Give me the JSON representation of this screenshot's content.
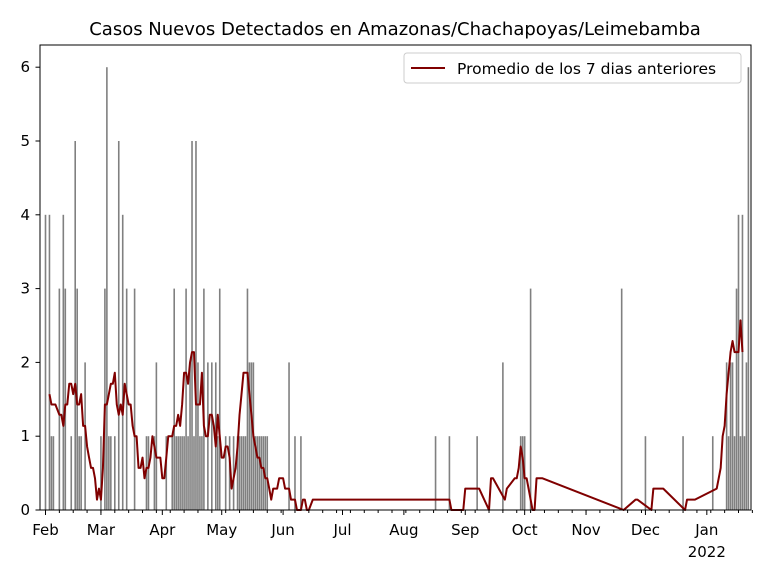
{
  "chart_data": {
    "type": "bar",
    "title": "Casos Nuevos Detectados en Amazonas/Chachapoyas/Leimebamba",
    "xlabel": "",
    "ylabel": "",
    "ylim": [
      0,
      6.3
    ],
    "yticks": [
      "0",
      "1",
      "2",
      "3",
      "4",
      "5",
      "6"
    ],
    "xticks": [
      {
        "label": "Feb",
        "day": 0
      },
      {
        "label": "Mar",
        "day": 28
      },
      {
        "label": "Apr",
        "day": 59
      },
      {
        "label": "May",
        "day": 89
      },
      {
        "label": "Jun",
        "day": 120
      },
      {
        "label": "Jul",
        "day": 150
      },
      {
        "label": "Aug",
        "day": 181
      },
      {
        "label": "Sep",
        "day": 212
      },
      {
        "label": "Oct",
        "day": 242
      },
      {
        "label": "Nov",
        "day": 273
      },
      {
        "label": "Dec",
        "day": 303
      },
      {
        "label": "Jan",
        "day": 334,
        "sublabel": "2022"
      }
    ],
    "grid": false,
    "legend": {
      "position": "top-right",
      "entries": [
        {
          "label": "Promedio de los 7 dias anteriores",
          "color": "#800000"
        }
      ]
    },
    "bar_color": "#808080",
    "line_color": "#800000",
    "date_start": "2021-02-01",
    "bars": {
      "day": [
        0,
        2,
        3,
        4,
        7,
        9,
        10,
        13,
        15,
        16,
        17,
        18,
        20,
        28,
        30,
        31,
        32,
        33,
        35,
        37,
        39,
        41,
        45,
        51,
        52,
        55,
        56,
        61,
        64,
        65,
        66,
        67,
        68,
        69,
        70,
        71,
        72,
        73,
        74,
        75,
        76,
        77,
        78,
        79,
        80,
        82,
        84,
        86,
        87,
        88,
        91,
        93,
        95,
        97,
        98,
        99,
        100,
        101,
        102,
        103,
        104,
        105,
        106,
        107,
        108,
        109,
        110,
        111,
        112,
        123,
        126,
        129,
        197,
        204,
        218,
        231,
        240,
        241,
        242,
        245,
        291,
        303,
        322,
        337,
        344,
        345,
        346,
        347,
        348,
        349,
        350,
        351,
        352,
        353,
        354,
        355
      ],
      "values": [
        4,
        4,
        1,
        1,
        3,
        4,
        3,
        1,
        5,
        3,
        1,
        1,
        2,
        1,
        3,
        6,
        1,
        1,
        1,
        5,
        4,
        3,
        3,
        1,
        1,
        1,
        2,
        1,
        1,
        3,
        1,
        1,
        1,
        1,
        1,
        3,
        1,
        2,
        5,
        1,
        5,
        2,
        1,
        1,
        3,
        2,
        2,
        2,
        1,
        3,
        1,
        1,
        1,
        1,
        1,
        1,
        1,
        1,
        3,
        2,
        2,
        2,
        1,
        1,
        1,
        1,
        1,
        1,
        1,
        2,
        1,
        1,
        1,
        1,
        1,
        2,
        1,
        1,
        1,
        3,
        3,
        1,
        1,
        1,
        2,
        1,
        2,
        2,
        1,
        3,
        4,
        1,
        4,
        1,
        2,
        6
      ]
    },
    "rolling_mean": {
      "day": [
        2,
        3,
        5,
        7,
        8,
        9,
        10,
        11,
        12,
        13,
        14,
        15,
        16,
        17,
        18,
        19,
        20,
        21,
        22,
        23,
        24,
        25,
        26,
        27,
        28,
        29,
        30,
        31,
        32,
        33,
        34,
        35,
        36,
        37,
        38,
        39,
        40,
        41,
        42,
        43,
        44,
        45,
        46,
        47,
        48,
        49,
        50,
        51,
        52,
        53,
        54,
        55,
        56,
        57,
        58,
        59,
        60,
        61,
        62,
        63,
        64,
        65,
        66,
        67,
        68,
        69,
        70,
        71,
        72,
        73,
        74,
        75,
        76,
        77,
        78,
        79,
        80,
        81,
        82,
        83,
        84,
        85,
        86,
        87,
        88,
        89,
        90,
        91,
        92,
        93,
        94,
        95,
        96,
        97,
        98,
        99,
        100,
        101,
        102,
        103,
        104,
        105,
        106,
        107,
        108,
        109,
        110,
        111,
        112,
        113,
        114,
        115,
        116,
        117,
        118,
        119,
        120,
        121,
        122,
        123,
        124,
        125,
        126,
        127,
        128,
        129,
        130,
        131,
        132,
        133,
        135,
        204,
        205,
        211,
        212,
        219,
        224,
        225,
        226,
        232,
        233,
        237,
        238,
        239,
        240,
        241,
        242,
        243,
        246,
        247,
        248,
        251,
        292,
        298,
        299,
        306,
        307,
        312,
        323,
        324,
        328,
        339,
        340,
        341,
        342,
        343,
        344,
        345,
        346,
        347,
        348,
        349,
        350,
        351,
        352,
        353,
        354,
        355
      ],
      "values": [
        1.57,
        1.43,
        1.43,
        1.29,
        1.29,
        1.14,
        1.43,
        1.43,
        1.71,
        1.71,
        1.57,
        1.71,
        1.43,
        1.43,
        1.57,
        1.14,
        1.14,
        0.86,
        0.71,
        0.57,
        0.57,
        0.43,
        0.14,
        0.29,
        0.14,
        0.57,
        1.43,
        1.43,
        1.57,
        1.71,
        1.71,
        1.86,
        1.43,
        1.29,
        1.43,
        1.29,
        1.71,
        1.57,
        1.43,
        1.43,
        1.14,
        1.0,
        1.0,
        0.57,
        0.57,
        0.71,
        0.43,
        0.57,
        0.57,
        0.71,
        1.0,
        0.86,
        0.71,
        0.71,
        0.71,
        0.43,
        0.43,
        0.71,
        1.0,
        1.0,
        1.0,
        1.14,
        1.14,
        1.29,
        1.14,
        1.43,
        1.86,
        1.86,
        1.71,
        2.0,
        2.14,
        2.14,
        1.43,
        1.43,
        1.43,
        1.86,
        1.14,
        1.0,
        1.0,
        1.29,
        1.29,
        1.14,
        0.86,
        1.29,
        1.0,
        0.71,
        0.71,
        0.86,
        0.86,
        0.71,
        0.29,
        0.43,
        0.57,
        0.86,
        1.29,
        1.57,
        1.86,
        1.86,
        1.86,
        1.57,
        1.29,
        1.0,
        0.86,
        0.71,
        0.71,
        0.57,
        0.57,
        0.43,
        0.43,
        0.29,
        0.14,
        0.29,
        0.29,
        0.29,
        0.43,
        0.43,
        0.43,
        0.29,
        0.29,
        0.29,
        0.14,
        0.14,
        0.14,
        0.0,
        0.0,
        0.0,
        0.14,
        0.14,
        0.0,
        0.0,
        0.14,
        0.14,
        0.0,
        0.0,
        0.29,
        0.29,
        0.0,
        0.43,
        0.43,
        0.14,
        0.29,
        0.43,
        0.43,
        0.57,
        0.86,
        0.71,
        0.43,
        0.43,
        0.0,
        0.0,
        0.43,
        0.43,
        0.0,
        0.14,
        0.14,
        0.0,
        0.29,
        0.29,
        0.0,
        0.14,
        0.14,
        0.29,
        0.43,
        0.57,
        1.0,
        1.14,
        1.57,
        1.86,
        2.14,
        2.29,
        2.14,
        2.14,
        2.14,
        2.57,
        2.14
      ]
    }
  }
}
